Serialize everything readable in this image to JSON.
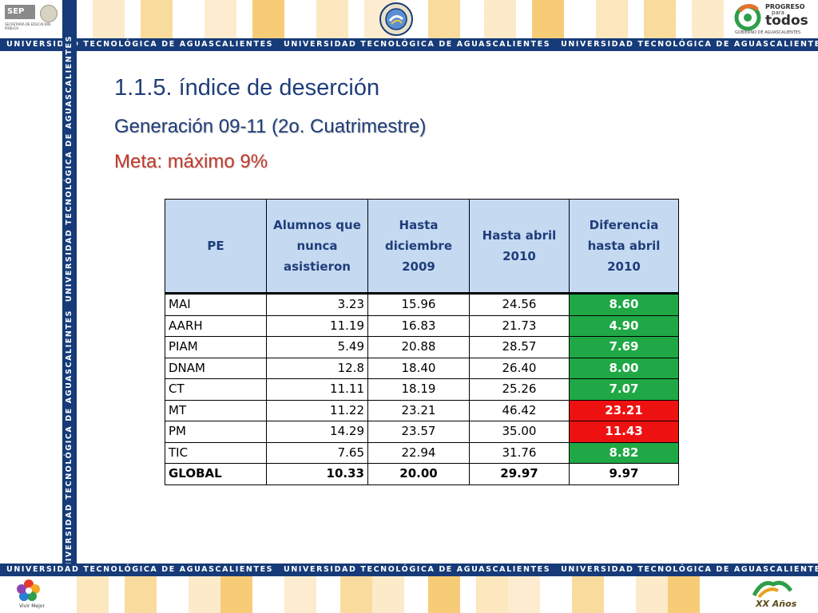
{
  "header": {
    "sep_label": "SEP",
    "sep_subtitle": "SECRETARÍA DE EDUCACIÓN PÚBLICA",
    "banner_text": "UNIVERSIDAD TECNOLÓGICA DE AGUASCALIENTES",
    "progreso_line1": "PROGRESO",
    "progreso_line2": "para",
    "progreso_line3": "todos",
    "progreso_sub": "GOBIERNO DE AGUASCALIENTES"
  },
  "footer": {
    "banner_text": "UNIVERSIDAD TECNOLÓGICA DE AGUASCALIENTES",
    "vivir_label": "Vivir Mejor",
    "xx_label": "XX Años"
  },
  "slide": {
    "title": "1.1.5.  índice de deserción",
    "subtitle": "Generación 09-11 (2o. Cuatrimestre)",
    "meta": "Meta: máximo 9%"
  },
  "table": {
    "headers": [
      "PE",
      "Alumnos que nunca asistieron",
      "Hasta diciembre 2009",
      "Hasta abril 2010",
      "Diferencia hasta abril 2010"
    ],
    "rows": [
      {
        "pe": "MAI",
        "nunca": "3.23",
        "dic": "15.96",
        "abr": "24.56",
        "dif": "8.60",
        "status": "green"
      },
      {
        "pe": "AARH",
        "nunca": "11.19",
        "dic": "16.83",
        "abr": "21.73",
        "dif": "4.90",
        "status": "green"
      },
      {
        "pe": "PIAM",
        "nunca": "5.49",
        "dic": "20.88",
        "abr": "28.57",
        "dif": "7.69",
        "status": "green"
      },
      {
        "pe": "DNAM",
        "nunca": "12.8",
        "dic": "18.40",
        "abr": "26.40",
        "dif": "8.00",
        "status": "green"
      },
      {
        "pe": "CT",
        "nunca": "11.11",
        "dic": "18.19",
        "abr": "25.26",
        "dif": "7.07",
        "status": "green"
      },
      {
        "pe": "MT",
        "nunca": "11.22",
        "dic": "23.21",
        "abr": "46.42",
        "dif": "23.21",
        "status": "red"
      },
      {
        "pe": "PM",
        "nunca": "14.29",
        "dic": "23.57",
        "abr": "35.00",
        "dif": "11.43",
        "status": "red"
      },
      {
        "pe": "TIC",
        "nunca": "7.65",
        "dic": "22.94",
        "abr": "31.76",
        "dif": "8.82",
        "status": "green"
      },
      {
        "pe": "GLOBAL",
        "nunca": "10.33",
        "dic": "20.00",
        "abr": "29.97",
        "dif": "9.97",
        "status": "plain"
      }
    ]
  },
  "colors": {
    "banner": "#163b78",
    "title": "#1f3d7a",
    "meta": "#c0392b",
    "header_fill": "#c5d9f1",
    "ok": "#1fa845",
    "over": "#ee1111"
  }
}
